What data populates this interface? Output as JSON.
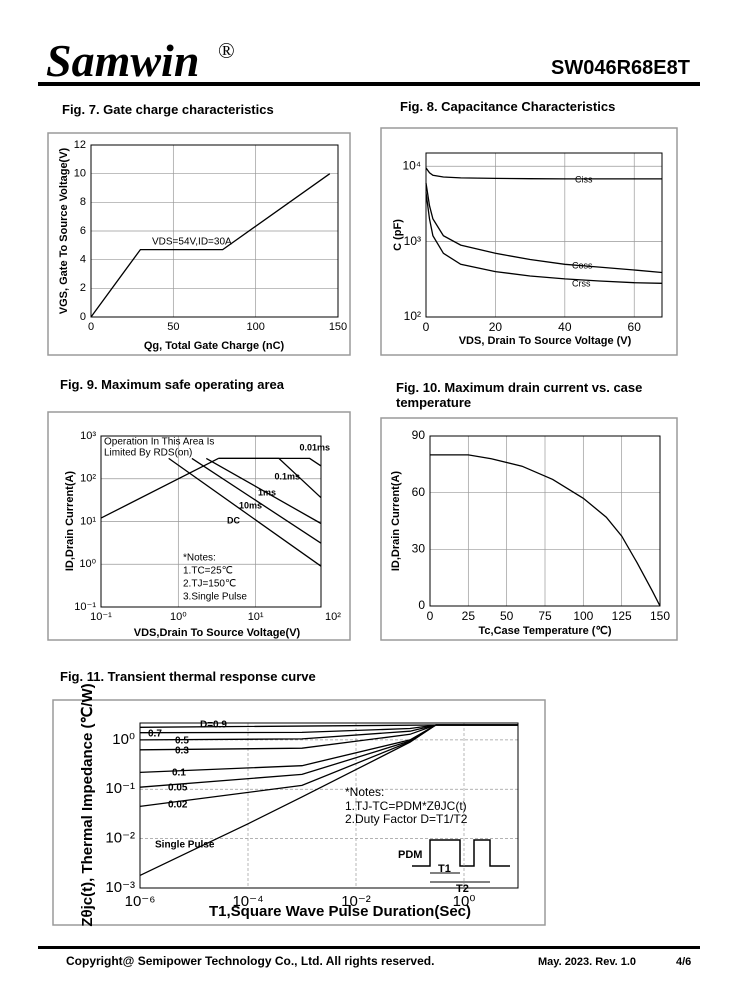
{
  "header": {
    "brand": "Samwin",
    "mark": "®",
    "part": "SW046R68E8T"
  },
  "footer": {
    "copyright": "Copyright@ Semipower Technology Co., Ltd. All rights reserved.",
    "date": "May. 2023. Rev. 1.0",
    "page": "4/6"
  },
  "chart_data": [
    {
      "type": "line",
      "title": "Fig. 7. Gate charge characteristics",
      "xlabel": "Qg, Total Gate Charge (nC)",
      "ylabel": "VGS, Gate To Source Voltage(V)",
      "xlim": [
        0,
        150
      ],
      "ylim": [
        0,
        12
      ],
      "xticks": [
        0,
        50,
        100,
        150
      ],
      "yticks": [
        0,
        2,
        4,
        6,
        8,
        10,
        12
      ],
      "grid": true,
      "series": [
        {
          "color": "#000000",
          "x": [
            0,
            30,
            80,
            145
          ],
          "values": [
            0,
            4.7,
            4.7,
            10
          ]
        }
      ],
      "annotations": [
        "VDS=54V,ID=30A"
      ]
    },
    {
      "type": "line",
      "title": "Fig. 8. Capacitance Characteristics",
      "xlabel": "VDS, Drain To Source Voltage (V)",
      "ylabel": "C (pF)",
      "xlim": [
        0,
        68
      ],
      "ylim": [
        100,
        15000
      ],
      "yscale": "log",
      "xticks": [
        0,
        20,
        40,
        60
      ],
      "yticks": [
        {
          "value": 100,
          "label": "10²"
        },
        {
          "value": 1000,
          "label": "10³"
        },
        {
          "value": 10000,
          "label": "10⁴"
        }
      ],
      "grid": true,
      "series": [
        {
          "name": "Ciss",
          "color": "#000000",
          "x": [
            0,
            1,
            2,
            5,
            10,
            20,
            30,
            40,
            50,
            60,
            68
          ],
          "values": [
            9500,
            8200,
            7600,
            7200,
            7000,
            6900,
            6850,
            6800,
            6800,
            6800,
            6800
          ]
        },
        {
          "name": "Coss",
          "color": "#000000",
          "x": [
            0,
            1,
            2,
            5,
            10,
            20,
            30,
            40,
            50,
            60,
            68
          ],
          "values": [
            6000,
            3000,
            2000,
            1200,
            900,
            700,
            580,
            500,
            460,
            420,
            390
          ]
        },
        {
          "name": "Crss",
          "color": "#000000",
          "x": [
            0,
            1,
            2,
            5,
            10,
            20,
            30,
            40,
            50,
            60,
            68
          ],
          "values": [
            4500,
            2000,
            1200,
            700,
            500,
            400,
            350,
            320,
            300,
            285,
            280
          ]
        }
      ],
      "annotations": []
    },
    {
      "type": "line",
      "title": "Fig. 9. Maximum safe operating area",
      "xlabel": "VDS,Drain To Source Voltage(V)",
      "ylabel": "ID,Drain Current(A)",
      "xlim": [
        0.1,
        70
      ],
      "ylim": [
        0.1,
        1000
      ],
      "xscale": "log",
      "yscale": "log",
      "xticks": [
        {
          "value": 0.1,
          "label": "10⁻¹"
        },
        {
          "value": 1,
          "label": "10⁰"
        },
        {
          "value": 10,
          "label": "10¹"
        },
        {
          "value": 100,
          "label": "10²"
        }
      ],
      "yticks": [
        {
          "value": 0.1,
          "label": "10⁻¹"
        },
        {
          "value": 1,
          "label": "10⁰"
        },
        {
          "value": 10,
          "label": "10¹"
        },
        {
          "value": 100,
          "label": "10²"
        },
        {
          "value": 1000,
          "label": "10³"
        }
      ],
      "grid": true,
      "series": [
        {
          "color": "#000000",
          "x": [
            0.1,
            3.3
          ],
          "values": [
            12,
            300
          ]
        },
        {
          "name": "0.01ms",
          "color": "#000000",
          "x": [
            3.3,
            50,
            70
          ],
          "values": [
            300,
            300,
            200
          ]
        },
        {
          "name": "0.1ms",
          "color": "#000000",
          "x": [
            3.3,
            20,
            70
          ],
          "values": [
            300,
            300,
            36
          ]
        },
        {
          "name": "1ms",
          "color": "#000000",
          "x": [
            2.3,
            70
          ],
          "values": [
            300,
            9
          ]
        },
        {
          "name": "10ms",
          "color": "#000000",
          "x": [
            1.5,
            70
          ],
          "values": [
            300,
            3.1
          ]
        },
        {
          "name": "DC",
          "color": "#000000",
          "x": [
            0.75,
            70
          ],
          "values": [
            300,
            0.9
          ]
        }
      ],
      "annotations": [
        "Operation In This Area Is",
        "Limited By RDS(on)",
        "*Notes:",
        "1.TC=25℃",
        "2.TJ=150℃",
        "3.Single Pulse"
      ]
    },
    {
      "type": "line",
      "title": "Fig. 10. Maximum drain current vs. case temperature",
      "xlabel": "Tc,Case Temperature (℃)",
      "ylabel": "ID,Drain Current(A)",
      "xlim": [
        0,
        150
      ],
      "ylim": [
        0,
        90
      ],
      "xticks": [
        0,
        25,
        50,
        75,
        100,
        125,
        150
      ],
      "yticks": [
        0,
        30,
        60,
        90
      ],
      "grid": true,
      "series": [
        {
          "color": "#000000",
          "x": [
            0,
            25,
            40,
            60,
            80,
            100,
            115,
            125,
            135,
            145,
            150
          ],
          "values": [
            80,
            80,
            78,
            74,
            67,
            57,
            47,
            37,
            23,
            8,
            0
          ]
        }
      ],
      "annotations": []
    },
    {
      "type": "line",
      "title": "Fig. 11. Transient thermal response curve",
      "xlabel": "T1,Square Wave Pulse Duration(Sec)",
      "ylabel": "Zθjc(t), Thermal Impedance (℃/W)",
      "xlim": [
        1e-06,
        10
      ],
      "ylim": [
        0.001,
        2.2
      ],
      "xscale": "log",
      "yscale": "log",
      "xticks": [
        {
          "value": 1e-06,
          "label": "10⁻⁶"
        },
        {
          "value": 0.0001,
          "label": "10⁻⁴"
        },
        {
          "value": 0.01,
          "label": "10⁻²"
        },
        {
          "value": 1,
          "label": "10⁰"
        }
      ],
      "yticks": [
        {
          "value": 0.001,
          "label": "10⁻³"
        },
        {
          "value": 0.01,
          "label": "10⁻²"
        },
        {
          "value": 0.1,
          "label": "10⁻¹"
        },
        {
          "value": 1,
          "label": "10⁰"
        }
      ],
      "grid": true,
      "series": [
        {
          "name": "D=0.9",
          "color": "#000000",
          "x": [
            1e-06,
            0.3,
            10
          ],
          "values": [
            1.8,
            2,
            2
          ]
        },
        {
          "name": "0.7",
          "color": "#000000",
          "x": [
            1e-06,
            0.001,
            0.1,
            0.3,
            10
          ],
          "values": [
            1.4,
            1.42,
            1.7,
            2,
            2
          ]
        },
        {
          "name": "0.5",
          "color": "#000000",
          "x": [
            1e-06,
            0.001,
            0.1,
            0.3,
            10
          ],
          "values": [
            1.0,
            1.05,
            1.5,
            2,
            2
          ]
        },
        {
          "name": "0.3",
          "color": "#000000",
          "x": [
            1e-06,
            0.001,
            0.1,
            0.3,
            10
          ],
          "values": [
            0.63,
            0.68,
            1.3,
            2,
            2
          ]
        },
        {
          "name": "0.1",
          "color": "#000000",
          "x": [
            1e-06,
            0.001,
            0.1,
            0.3,
            10
          ],
          "values": [
            0.22,
            0.3,
            1.0,
            2,
            2
          ]
        },
        {
          "name": "0.05",
          "color": "#000000",
          "x": [
            1e-06,
            0.001,
            0.1,
            0.3,
            10
          ],
          "values": [
            0.11,
            0.2,
            0.95,
            2,
            2
          ]
        },
        {
          "name": "0.02",
          "color": "#000000",
          "x": [
            1e-06,
            0.001,
            0.1,
            0.3,
            10
          ],
          "values": [
            0.045,
            0.12,
            0.92,
            2,
            2
          ]
        },
        {
          "name": "Single Pulse",
          "color": "#000000",
          "x": [
            1e-06,
            1e-05,
            0.0001,
            0.001,
            0.01,
            0.1,
            0.3,
            10
          ],
          "values": [
            0.0018,
            0.006,
            0.02,
            0.07,
            0.25,
            0.9,
            2,
            2
          ]
        }
      ],
      "annotations": [
        "*Notes:",
        "1.TJ-TC=PDM*ZθJC(t)",
        "2.Duty Factor D=T1/T2",
        "PDM",
        "T1",
        "T2"
      ]
    }
  ]
}
